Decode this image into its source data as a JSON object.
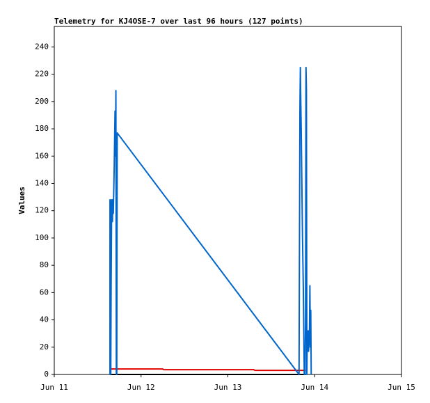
{
  "chart_data": {
    "type": "line",
    "title": "Telemetry for KJ4OSE-7 over last 96 hours (127 points)",
    "y_label": "Values",
    "xlim": [
      0,
      4
    ],
    "xticks": [
      {
        "value": 0,
        "label": "Jun 11"
      },
      {
        "value": 1,
        "label": "Jun 12"
      },
      {
        "value": 2,
        "label": "Jun 13"
      },
      {
        "value": 3,
        "label": "Jun 14"
      },
      {
        "value": 4,
        "label": "Jun 15"
      }
    ],
    "ylim": [
      0,
      255
    ],
    "yticks": [
      0,
      20,
      40,
      60,
      80,
      100,
      120,
      140,
      160,
      180,
      200,
      220,
      240
    ],
    "series": [
      {
        "color": "#000000",
        "x": [
          0.64,
          2.9
        ],
        "values": [
          0,
          0
        ]
      },
      {
        "color": "#e00000",
        "x": [
          0.64,
          1.25,
          1.26,
          2.3,
          2.31,
          2.9
        ],
        "values": [
          4,
          4,
          3.5,
          3.5,
          3,
          3
        ]
      },
      {
        "color": "#0066cc",
        "x": [
          0.642,
          0.642,
          0.645,
          0.648,
          0.651,
          0.655,
          0.66,
          0.665,
          0.67,
          0.675,
          0.68,
          0.69,
          0.7,
          0.705,
          0.71,
          0.715,
          0.72,
          0.725,
          2.82,
          2.83,
          2.835,
          2.84,
          2.845,
          2.86,
          2.87,
          2.88,
          2.89,
          2.895,
          2.9,
          2.905,
          2.91,
          2.915,
          2.92,
          2.925,
          2.93,
          2.94,
          2.945,
          2.95,
          2.955,
          2.96
        ],
        "values": [
          0,
          128,
          40,
          128,
          0,
          65,
          115,
          128,
          112,
          128,
          118,
          150,
          193,
          160,
          208,
          0,
          0,
          177,
          0,
          193,
          225,
          200,
          180,
          100,
          60,
          0,
          0,
          40,
          225,
          208,
          0,
          30,
          17,
          32,
          17,
          32,
          65,
          20,
          47,
          0
        ]
      }
    ]
  }
}
